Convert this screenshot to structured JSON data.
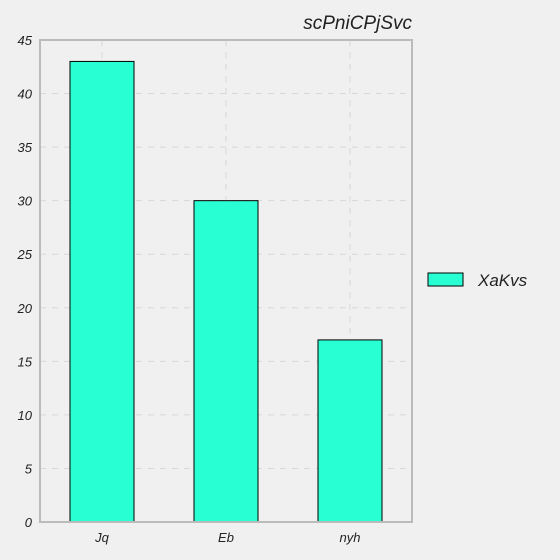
{
  "chart_data": {
    "type": "bar",
    "title": "scPniCPjSvc",
    "xlabel": "",
    "ylabel": "",
    "categories": [
      "Jq",
      "Eb",
      "nyh"
    ],
    "series": [
      {
        "name": "XaKvs",
        "values": [
          43,
          30,
          17
        ],
        "color": "#28ffd2"
      }
    ],
    "ylim": [
      0,
      45
    ],
    "yticks": [
      0,
      5,
      10,
      15,
      20,
      25,
      30,
      35,
      40,
      45
    ],
    "grid": true,
    "legend_position": "right"
  }
}
